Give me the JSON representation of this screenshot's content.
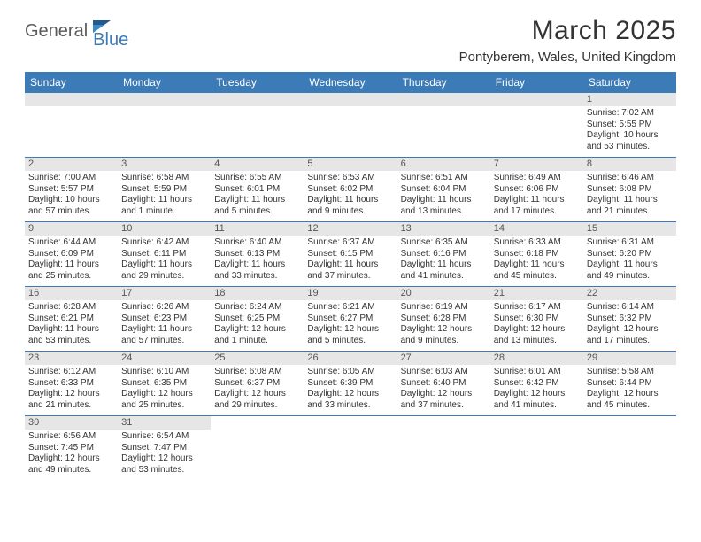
{
  "logo": {
    "part1": "General",
    "part2": "Blue"
  },
  "title": "March 2025",
  "location": "Pontyberem, Wales, United Kingdom",
  "colors": {
    "header_bg": "#3b7bb8",
    "header_text": "#ffffff",
    "daynum_bg": "#e6e6e6",
    "daynum_text": "#555555",
    "body_text": "#333333",
    "rule": "#3b7bb8"
  },
  "dayNames": [
    "Sunday",
    "Monday",
    "Tuesday",
    "Wednesday",
    "Thursday",
    "Friday",
    "Saturday"
  ],
  "weeks": [
    [
      {
        "empty": true
      },
      {
        "empty": true
      },
      {
        "empty": true
      },
      {
        "empty": true
      },
      {
        "empty": true
      },
      {
        "empty": true
      },
      {
        "num": "1",
        "sunrise": "Sunrise: 7:02 AM",
        "sunset": "Sunset: 5:55 PM",
        "daylight": "Daylight: 10 hours and 53 minutes."
      }
    ],
    [
      {
        "num": "2",
        "sunrise": "Sunrise: 7:00 AM",
        "sunset": "Sunset: 5:57 PM",
        "daylight": "Daylight: 10 hours and 57 minutes."
      },
      {
        "num": "3",
        "sunrise": "Sunrise: 6:58 AM",
        "sunset": "Sunset: 5:59 PM",
        "daylight": "Daylight: 11 hours and 1 minute."
      },
      {
        "num": "4",
        "sunrise": "Sunrise: 6:55 AM",
        "sunset": "Sunset: 6:01 PM",
        "daylight": "Daylight: 11 hours and 5 minutes."
      },
      {
        "num": "5",
        "sunrise": "Sunrise: 6:53 AM",
        "sunset": "Sunset: 6:02 PM",
        "daylight": "Daylight: 11 hours and 9 minutes."
      },
      {
        "num": "6",
        "sunrise": "Sunrise: 6:51 AM",
        "sunset": "Sunset: 6:04 PM",
        "daylight": "Daylight: 11 hours and 13 minutes."
      },
      {
        "num": "7",
        "sunrise": "Sunrise: 6:49 AM",
        "sunset": "Sunset: 6:06 PM",
        "daylight": "Daylight: 11 hours and 17 minutes."
      },
      {
        "num": "8",
        "sunrise": "Sunrise: 6:46 AM",
        "sunset": "Sunset: 6:08 PM",
        "daylight": "Daylight: 11 hours and 21 minutes."
      }
    ],
    [
      {
        "num": "9",
        "sunrise": "Sunrise: 6:44 AM",
        "sunset": "Sunset: 6:09 PM",
        "daylight": "Daylight: 11 hours and 25 minutes."
      },
      {
        "num": "10",
        "sunrise": "Sunrise: 6:42 AM",
        "sunset": "Sunset: 6:11 PM",
        "daylight": "Daylight: 11 hours and 29 minutes."
      },
      {
        "num": "11",
        "sunrise": "Sunrise: 6:40 AM",
        "sunset": "Sunset: 6:13 PM",
        "daylight": "Daylight: 11 hours and 33 minutes."
      },
      {
        "num": "12",
        "sunrise": "Sunrise: 6:37 AM",
        "sunset": "Sunset: 6:15 PM",
        "daylight": "Daylight: 11 hours and 37 minutes."
      },
      {
        "num": "13",
        "sunrise": "Sunrise: 6:35 AM",
        "sunset": "Sunset: 6:16 PM",
        "daylight": "Daylight: 11 hours and 41 minutes."
      },
      {
        "num": "14",
        "sunrise": "Sunrise: 6:33 AM",
        "sunset": "Sunset: 6:18 PM",
        "daylight": "Daylight: 11 hours and 45 minutes."
      },
      {
        "num": "15",
        "sunrise": "Sunrise: 6:31 AM",
        "sunset": "Sunset: 6:20 PM",
        "daylight": "Daylight: 11 hours and 49 minutes."
      }
    ],
    [
      {
        "num": "16",
        "sunrise": "Sunrise: 6:28 AM",
        "sunset": "Sunset: 6:21 PM",
        "daylight": "Daylight: 11 hours and 53 minutes."
      },
      {
        "num": "17",
        "sunrise": "Sunrise: 6:26 AM",
        "sunset": "Sunset: 6:23 PM",
        "daylight": "Daylight: 11 hours and 57 minutes."
      },
      {
        "num": "18",
        "sunrise": "Sunrise: 6:24 AM",
        "sunset": "Sunset: 6:25 PM",
        "daylight": "Daylight: 12 hours and 1 minute."
      },
      {
        "num": "19",
        "sunrise": "Sunrise: 6:21 AM",
        "sunset": "Sunset: 6:27 PM",
        "daylight": "Daylight: 12 hours and 5 minutes."
      },
      {
        "num": "20",
        "sunrise": "Sunrise: 6:19 AM",
        "sunset": "Sunset: 6:28 PM",
        "daylight": "Daylight: 12 hours and 9 minutes."
      },
      {
        "num": "21",
        "sunrise": "Sunrise: 6:17 AM",
        "sunset": "Sunset: 6:30 PM",
        "daylight": "Daylight: 12 hours and 13 minutes."
      },
      {
        "num": "22",
        "sunrise": "Sunrise: 6:14 AM",
        "sunset": "Sunset: 6:32 PM",
        "daylight": "Daylight: 12 hours and 17 minutes."
      }
    ],
    [
      {
        "num": "23",
        "sunrise": "Sunrise: 6:12 AM",
        "sunset": "Sunset: 6:33 PM",
        "daylight": "Daylight: 12 hours and 21 minutes."
      },
      {
        "num": "24",
        "sunrise": "Sunrise: 6:10 AM",
        "sunset": "Sunset: 6:35 PM",
        "daylight": "Daylight: 12 hours and 25 minutes."
      },
      {
        "num": "25",
        "sunrise": "Sunrise: 6:08 AM",
        "sunset": "Sunset: 6:37 PM",
        "daylight": "Daylight: 12 hours and 29 minutes."
      },
      {
        "num": "26",
        "sunrise": "Sunrise: 6:05 AM",
        "sunset": "Sunset: 6:39 PM",
        "daylight": "Daylight: 12 hours and 33 minutes."
      },
      {
        "num": "27",
        "sunrise": "Sunrise: 6:03 AM",
        "sunset": "Sunset: 6:40 PM",
        "daylight": "Daylight: 12 hours and 37 minutes."
      },
      {
        "num": "28",
        "sunrise": "Sunrise: 6:01 AM",
        "sunset": "Sunset: 6:42 PM",
        "daylight": "Daylight: 12 hours and 41 minutes."
      },
      {
        "num": "29",
        "sunrise": "Sunrise: 5:58 AM",
        "sunset": "Sunset: 6:44 PM",
        "daylight": "Daylight: 12 hours and 45 minutes."
      }
    ],
    [
      {
        "num": "30",
        "sunrise": "Sunrise: 6:56 AM",
        "sunset": "Sunset: 7:45 PM",
        "daylight": "Daylight: 12 hours and 49 minutes."
      },
      {
        "num": "31",
        "sunrise": "Sunrise: 6:54 AM",
        "sunset": "Sunset: 7:47 PM",
        "daylight": "Daylight: 12 hours and 53 minutes."
      },
      {
        "empty": true
      },
      {
        "empty": true
      },
      {
        "empty": true
      },
      {
        "empty": true
      },
      {
        "empty": true
      }
    ]
  ]
}
